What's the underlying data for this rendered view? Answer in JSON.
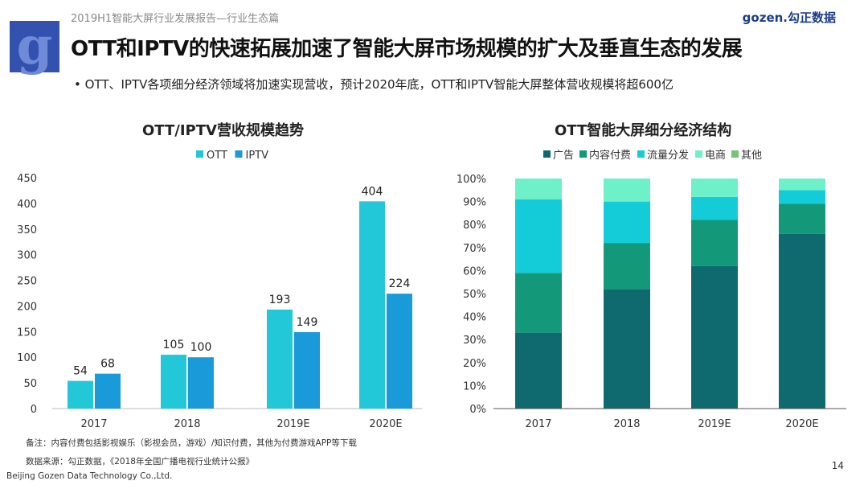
{
  "header": {
    "report_title": "2019H1智能大屏行业发展报告—行业生态篇",
    "brand": "gozen.勾正数据",
    "logo_letter": "g",
    "slide_title": "OTT和IPTV的快速拓展加速了智能大屏市场规模的扩大及垂直生态的发展",
    "bullet": "•  OTT、IPTV各项细分经济领域将加速实现营收，预计2020年底，OTT和IPTV智能大屏整体营收规模将超600亿"
  },
  "chart_data": [
    {
      "type": "bar",
      "title": "OTT/IPTV营收规模趋势",
      "categories": [
        "2017",
        "2018",
        "2019E",
        "2020E"
      ],
      "series": [
        {
          "name": "OTT",
          "values": [
            54,
            105,
            193,
            404
          ],
          "color": "#22c8d8"
        },
        {
          "name": "IPTV",
          "values": [
            68,
            100,
            149,
            224
          ],
          "color": "#1a9ad8"
        }
      ],
      "ylim": [
        0,
        450
      ],
      "yticks": [
        0,
        50,
        100,
        150,
        200,
        250,
        300,
        350,
        400,
        450
      ],
      "legend": "top",
      "grid": false,
      "data_labels": true
    },
    {
      "type": "bar",
      "stacked": true,
      "title": "OTT智能大屏细分经济结构",
      "categories": [
        "2017",
        "2018",
        "2019E",
        "2020E"
      ],
      "series": [
        {
          "name": "广告",
          "values": [
            33,
            52,
            62,
            76
          ],
          "color": "#0e6a6e"
        },
        {
          "name": "内容付费",
          "values": [
            26,
            20,
            20,
            13
          ],
          "color": "#13997a"
        },
        {
          "name": "流量分发",
          "values": [
            32,
            18,
            10,
            6
          ],
          "color": "#14ccd8"
        },
        {
          "name": "电商",
          "values": [
            9,
            10,
            8,
            5
          ],
          "color": "#6ef0c8"
        },
        {
          "name": "其他",
          "values": [
            0,
            0,
            0,
            0
          ],
          "color": "#78c278"
        }
      ],
      "ylim": [
        0,
        100
      ],
      "yticks": [
        "0%",
        "10%",
        "20%",
        "30%",
        "40%",
        "50%",
        "60%",
        "70%",
        "80%",
        "90%",
        "100%"
      ],
      "legend": "top",
      "grid": false
    }
  ],
  "footer": {
    "note": "备注：内容付费包括影视娱乐（影视会员，游戏）/知识付费，其他为付费游戏APP等下载",
    "source": "数据来源：勾正数据，《2018年全国广播电视行业统计公报》",
    "company": "Beijing Gozen Data Technology Co.,Ltd.",
    "page_number": "14"
  }
}
